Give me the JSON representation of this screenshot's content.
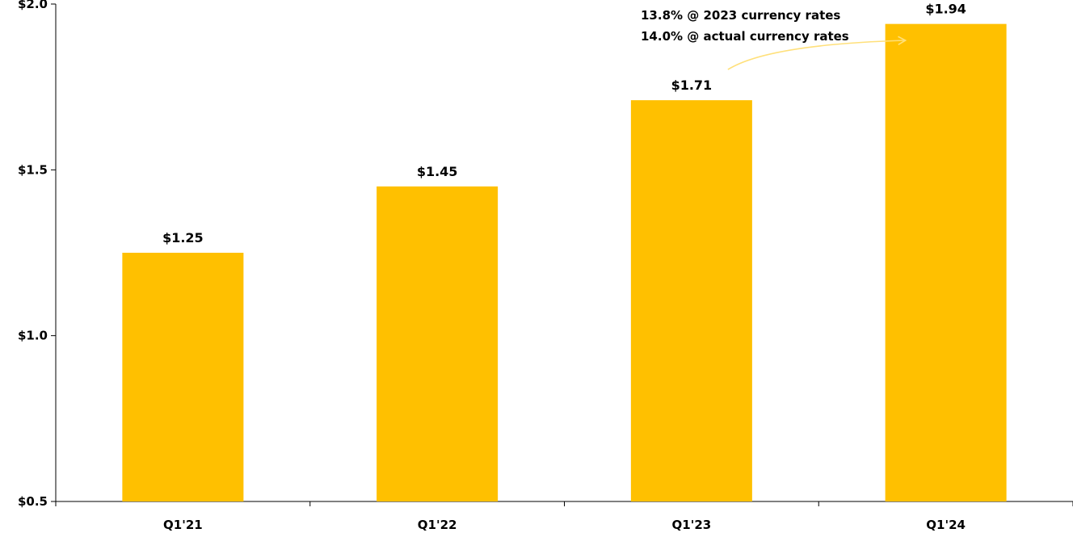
{
  "chart_data": {
    "type": "bar",
    "categories": [
      "Q1'21",
      "Q1'22",
      "Q1'23",
      "Q1'24"
    ],
    "values": [
      1.25,
      1.45,
      1.71,
      1.94
    ],
    "data_labels": [
      "$1.25",
      "$1.45",
      "$1.71",
      "$1.94"
    ],
    "title": "",
    "xlabel": "",
    "ylabel": "",
    "ylim": [
      0.5,
      2.0
    ],
    "yticks": [
      0.5,
      1.0,
      1.5,
      2.0
    ],
    "ytick_labels": [
      "$0.5",
      "$1.0",
      "$1.5",
      "$2.0"
    ],
    "grid": false,
    "bar_color": "#FFC000",
    "annotation": {
      "lines": [
        "13.8% @ 2023 currency rates",
        "14.0% @ actual currency rates"
      ],
      "arrow_from": "Q1'23",
      "arrow_to": "Q1'24",
      "arrow_color": "#FFE07A"
    }
  }
}
